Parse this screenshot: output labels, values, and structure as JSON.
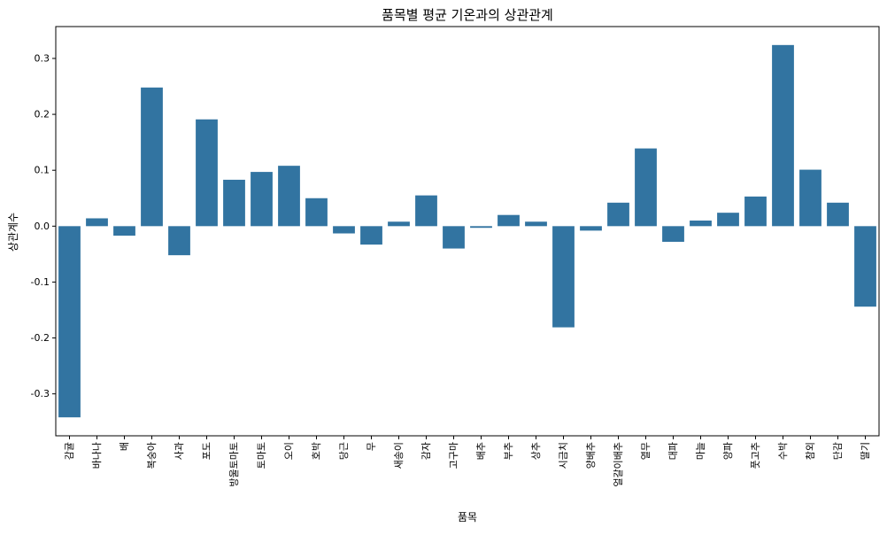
{
  "chart_data": {
    "type": "bar",
    "title": "품목별 평균 기온과의 상관관계",
    "xlabel": "품목",
    "ylabel": "상관계수",
    "categories": [
      "감귤",
      "바나나",
      "배",
      "복숭아",
      "사과",
      "포도",
      "방울토마토",
      "토마토",
      "오이",
      "호박",
      "당근",
      "무",
      "새송이",
      "감자",
      "고구마",
      "배추",
      "부추",
      "상추",
      "시금치",
      "양배추",
      "얼갈이배추",
      "열무",
      "대파",
      "마늘",
      "양파",
      "풋고추",
      "수박",
      "참외",
      "단감",
      "딸기"
    ],
    "values": [
      -0.342,
      0.014,
      -0.017,
      0.248,
      -0.052,
      0.191,
      0.083,
      0.097,
      0.108,
      0.05,
      -0.013,
      -0.033,
      0.008,
      0.055,
      -0.04,
      -0.003,
      0.02,
      0.008,
      -0.181,
      -0.008,
      0.042,
      0.139,
      -0.028,
      0.01,
      0.024,
      0.053,
      0.324,
      0.101,
      0.042,
      -0.144
    ],
    "ylim": [
      -0.375,
      0.357
    ],
    "yticks": [
      -0.3,
      -0.2,
      -0.1,
      0.0,
      0.1,
      0.2,
      0.3
    ],
    "ytick_labels": [
      "-0.3",
      "-0.2",
      "-0.1",
      "0.0",
      "0.1",
      "0.2",
      "0.3"
    ],
    "bar_color": "#3274a1",
    "grid": false
  }
}
